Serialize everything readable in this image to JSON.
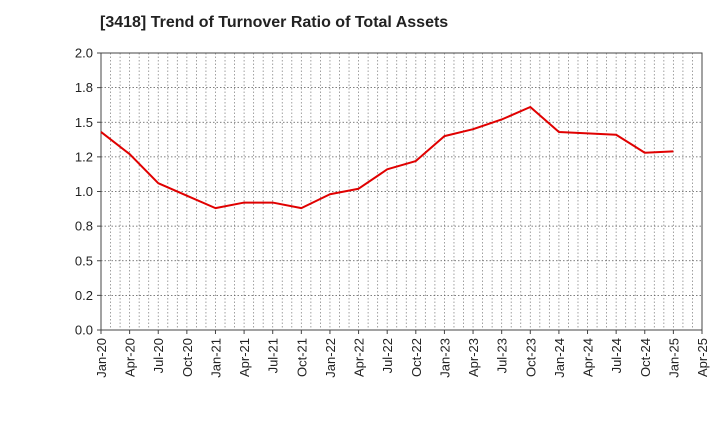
{
  "chart_data": {
    "type": "line",
    "title": "[3418]  Trend of Turnover Ratio of Total Assets",
    "xlabel": "",
    "ylabel": "",
    "ylim": [
      0.0,
      2.0
    ],
    "yticks": [
      "0.0",
      "0.2",
      "0.5",
      "0.8",
      "1.0",
      "1.2",
      "1.5",
      "1.8",
      "2.0"
    ],
    "ytick_values": [
      0.0,
      0.25,
      0.5,
      0.75,
      1.0,
      1.25,
      1.5,
      1.75,
      2.0
    ],
    "xticks": [
      "Jan-20",
      "Apr-20",
      "Jul-20",
      "Oct-20",
      "Jan-21",
      "Apr-21",
      "Jul-21",
      "Oct-21",
      "Jan-22",
      "Apr-22",
      "Jul-22",
      "Oct-22",
      "Jan-23",
      "Apr-23",
      "Jul-23",
      "Oct-23",
      "Jan-24",
      "Apr-24",
      "Jul-24",
      "Oct-24",
      "Jan-25",
      "Apr-25"
    ],
    "grid": true,
    "legend": "none",
    "series": [
      {
        "color": "#e00000",
        "x": [
          "Jan-20",
          "Apr-20",
          "Jul-20",
          "Oct-20",
          "Jan-21",
          "Apr-21",
          "Jul-21",
          "Oct-21",
          "Jan-22",
          "Apr-22",
          "Jul-22",
          "Oct-22",
          "Jan-23",
          "Apr-23",
          "Jul-23",
          "Oct-23",
          "Jan-24",
          "Apr-24",
          "Jul-24",
          "Oct-24",
          "Jan-25"
        ],
        "values": [
          1.43,
          1.27,
          1.06,
          0.97,
          0.88,
          0.92,
          0.92,
          0.88,
          0.98,
          1.02,
          1.16,
          1.22,
          1.4,
          1.45,
          1.52,
          1.61,
          1.43,
          1.42,
          1.41,
          1.28,
          1.29
        ]
      }
    ]
  }
}
